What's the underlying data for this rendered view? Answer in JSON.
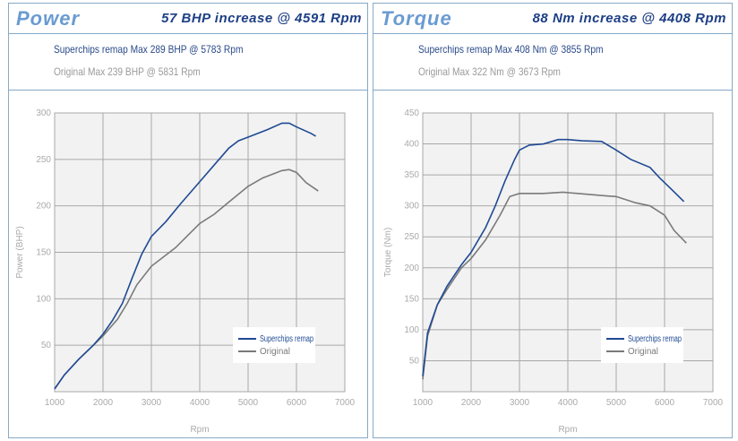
{
  "colors": {
    "remap": "#1f4a94",
    "original": "#7a7a7a",
    "grid": "#a8a8a8",
    "plot_bg": "#f2f2f2"
  },
  "chart_data": [
    {
      "type": "line",
      "title": "Power",
      "increase": "57 BHP increase @ 4591 Rpm",
      "subtitle_remap": "Superchips remap Max 289 BHP @ 5783 Rpm",
      "subtitle_original": "Original Max 239 BHP @ 5831 Rpm",
      "xlabel": "Rpm",
      "ylabel": "Power (BHP)",
      "xlim": [
        1000,
        7000
      ],
      "ylim": [
        0,
        300
      ],
      "xticks": [
        1000,
        2000,
        3000,
        4000,
        5000,
        6000,
        7000
      ],
      "yticks": [
        50,
        100,
        150,
        200,
        250,
        300
      ],
      "grid": true,
      "legend": "bottom-right",
      "series": [
        {
          "name": "Superchips remap",
          "x": [
            1000,
            1200,
            1500,
            1800,
            2000,
            2200,
            2400,
            2600,
            2800,
            3000,
            3300,
            3600,
            4000,
            4400,
            4600,
            4800,
            5000,
            5400,
            5700,
            5850,
            6000,
            6300,
            6400
          ],
          "y": [
            3,
            18,
            35,
            50,
            62,
            77,
            95,
            122,
            148,
            167,
            183,
            202,
            226,
            250,
            262,
            270,
            274,
            282,
            289,
            289,
            285,
            278,
            275
          ]
        },
        {
          "name": "Original",
          "x": [
            1000,
            1200,
            1500,
            1800,
            2000,
            2300,
            2500,
            2700,
            3000,
            3500,
            4000,
            4300,
            4600,
            5000,
            5300,
            5700,
            5850,
            6000,
            6200,
            6450
          ],
          "y": [
            3,
            18,
            35,
            50,
            60,
            78,
            95,
            115,
            135,
            155,
            181,
            191,
            204,
            221,
            230,
            238,
            239,
            236,
            225,
            216
          ]
        }
      ]
    },
    {
      "type": "line",
      "title": "Torque",
      "increase": "88 Nm increase @ 4408 Rpm",
      "subtitle_remap": "Superchips remap Max 408 Nm @ 3855 Rpm",
      "subtitle_original": "Original Max 322 Nm @ 3673 Rpm",
      "xlabel": "Rpm",
      "ylabel": "Torque (Nm)",
      "xlim": [
        1000,
        7000
      ],
      "ylim": [
        0,
        450
      ],
      "xticks": [
        1000,
        2000,
        3000,
        4000,
        5000,
        6000,
        7000
      ],
      "yticks": [
        50,
        100,
        150,
        200,
        250,
        300,
        350,
        400,
        450
      ],
      "grid": true,
      "legend": "bottom-right",
      "series": [
        {
          "name": "Superchips remap",
          "x": [
            1000,
            1100,
            1300,
            1500,
            1800,
            2000,
            2300,
            2500,
            2700,
            2900,
            3000,
            3200,
            3500,
            3800,
            4000,
            4300,
            4700,
            5000,
            5300,
            5700,
            5900,
            6100,
            6400
          ],
          "y": [
            25,
            95,
            140,
            170,
            205,
            225,
            265,
            300,
            340,
            375,
            390,
            398,
            400,
            407,
            407,
            405,
            404,
            390,
            375,
            362,
            345,
            330,
            307
          ]
        },
        {
          "name": "Original",
          "x": [
            1000,
            1100,
            1300,
            1500,
            1800,
            2000,
            2300,
            2600,
            2800,
            3000,
            3500,
            3900,
            4200,
            4800,
            5000,
            5400,
            5700,
            6000,
            6200,
            6450
          ],
          "y": [
            20,
            90,
            140,
            165,
            200,
            215,
            245,
            285,
            315,
            320,
            320,
            322,
            320,
            316,
            315,
            305,
            300,
            285,
            260,
            240
          ]
        }
      ]
    }
  ]
}
